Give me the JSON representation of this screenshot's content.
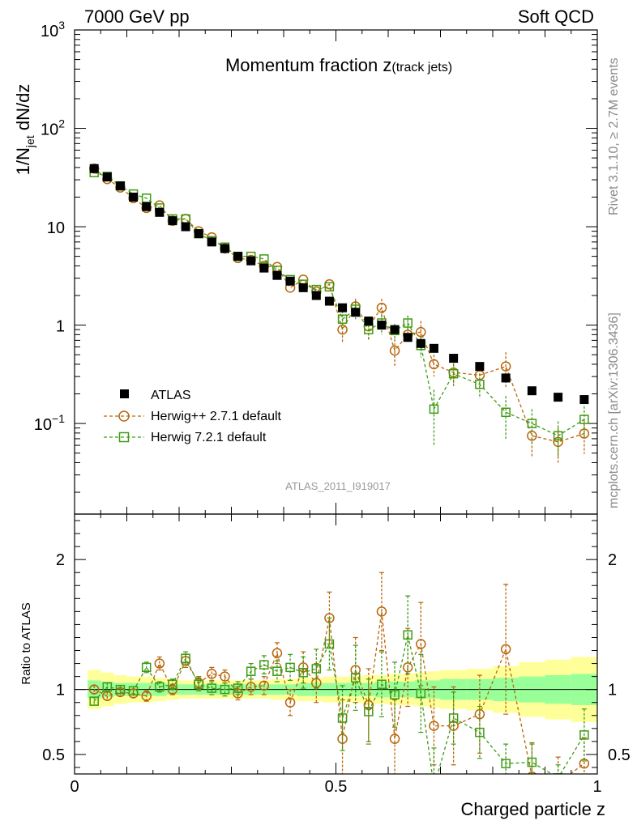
{
  "header": {
    "left": "7000 GeV pp",
    "right": "Soft QCD"
  },
  "side_labels": {
    "rivet": "Rivet 3.1.10, ≥ 2.7M events",
    "mcplots": "mcplots.cern.ch [arXiv:1306.3436]"
  },
  "analysis_id": "ATLAS_2011_I919017",
  "colors": {
    "atlas": "#000000",
    "herwigpp": "#b8660b",
    "herwig7": "#3f9a14",
    "band_inner": "#99ff99",
    "band_outer": "#ffff99"
  },
  "chart_data": [
    {
      "type": "scatter",
      "panel": "main",
      "title_main": "Momentum fraction ",
      "title_z": "z",
      "title_sub": "(track jets)",
      "ylabel_main": "1/N",
      "ylabel_sub": "jet",
      "ylabel_tail": " dN/dz",
      "yscale": "log",
      "ylim": [
        0.012,
        1000
      ],
      "xlim": [
        0,
        1
      ],
      "yticks": [
        {
          "value": 0.1,
          "base": "10",
          "exp": "−1"
        },
        {
          "value": 1,
          "base": "1",
          "exp": ""
        },
        {
          "value": 10,
          "base": "10",
          "exp": ""
        },
        {
          "value": 100,
          "base": "10",
          "exp": "2"
        },
        {
          "value": 1000,
          "base": "10",
          "exp": "3"
        }
      ],
      "legend": {
        "position": "lower-left",
        "entries": [
          "ATLAS",
          "Herwig++ 2.7.1 default",
          "Herwig 7.2.1 default"
        ]
      },
      "x": [
        0.0375,
        0.0625,
        0.0875,
        0.1125,
        0.1375,
        0.1625,
        0.1875,
        0.2125,
        0.2375,
        0.2625,
        0.2875,
        0.3125,
        0.3375,
        0.3625,
        0.3875,
        0.4125,
        0.4375,
        0.4625,
        0.4875,
        0.5125,
        0.5375,
        0.5625,
        0.5875,
        0.6125,
        0.6375,
        0.6625,
        0.6875,
        0.725,
        0.775,
        0.825,
        0.875,
        0.925,
        0.975
      ],
      "series": [
        {
          "name": "ATLAS",
          "values": [
            39,
            32,
            26,
            20,
            16,
            14,
            11.5,
            10,
            8.5,
            7,
            6,
            5,
            4.5,
            3.8,
            3.2,
            2.8,
            2.4,
            2.0,
            1.75,
            1.5,
            1.35,
            1.1,
            1.0,
            0.9,
            0.75,
            0.65,
            0.58,
            0.46,
            0.38,
            0.29,
            0.215,
            0.185,
            0.175
          ]
        },
        {
          "name": "Herwig++ 2.7.1 default",
          "values": [
            39,
            30.5,
            25,
            19.5,
            15.5,
            16.5,
            11.5,
            12,
            9,
            7.8,
            6,
            4.8,
            4.6,
            4.0,
            3.9,
            2.4,
            2.9,
            2.2,
            2.6,
            0.9,
            1.55,
            0.97,
            1.5,
            0.55,
            0.8,
            0.85,
            0.4,
            0.33,
            0.31,
            0.38,
            0.075,
            0.065,
            0.079
          ],
          "errors": [
            0,
            0,
            0,
            0,
            0,
            0,
            0,
            0,
            0,
            0,
            0,
            0,
            0,
            0,
            0,
            0,
            0,
            0,
            0,
            0.25,
            0.3,
            0.25,
            0.35,
            0.17,
            0.15,
            0.25,
            0.1,
            0.08,
            0.08,
            0.15,
            0.03,
            0.025,
            0.03
          ]
        },
        {
          "name": "Herwig 7.2.1 default",
          "values": [
            35.5,
            32.5,
            26,
            21.5,
            19.5,
            15.5,
            12,
            12,
            8.5,
            7.2,
            6.2,
            5,
            5,
            4.7,
            3.6,
            2.9,
            2.6,
            2.3,
            2.45,
            1.15,
            1.45,
            0.9,
            1.05,
            0.88,
            1.05,
            0.62,
            0.14,
            0.32,
            0.25,
            0.13,
            0.1,
            0.075,
            0.11
          ],
          "errors": [
            0,
            0,
            0,
            0,
            0,
            0,
            0,
            0,
            0,
            0,
            0,
            0,
            0,
            0,
            0,
            0,
            0,
            0,
            0,
            0.25,
            0.3,
            0.2,
            0.25,
            0.15,
            0.2,
            0.15,
            0.08,
            0.08,
            0.07,
            0.06,
            0.04,
            0.03,
            0.04
          ]
        }
      ]
    },
    {
      "type": "scatter",
      "panel": "ratio",
      "ylabel": "Ratio to ATLAS",
      "xlabel": "Charged particle z",
      "ylim": [
        0.35,
        2.35
      ],
      "xlim": [
        0,
        1
      ],
      "yticks": [
        0.5,
        1,
        2
      ],
      "xticks": [
        0,
        0.5,
        1
      ],
      "band_edges": [
        0.025,
        0.05,
        0.075,
        0.1,
        0.125,
        0.15,
        0.175,
        0.2,
        0.225,
        0.25,
        0.275,
        0.3,
        0.325,
        0.35,
        0.375,
        0.4,
        0.425,
        0.45,
        0.475,
        0.5,
        0.525,
        0.55,
        0.575,
        0.6,
        0.625,
        0.65,
        0.675,
        0.7,
        0.75,
        0.8,
        0.85,
        0.9,
        0.95,
        1.0
      ],
      "band_inner": [
        0.07,
        0.06,
        0.05,
        0.05,
        0.05,
        0.05,
        0.04,
        0.04,
        0.04,
        0.04,
        0.04,
        0.04,
        0.04,
        0.04,
        0.04,
        0.04,
        0.05,
        0.05,
        0.05,
        0.05,
        0.05,
        0.05,
        0.06,
        0.06,
        0.06,
        0.07,
        0.07,
        0.08,
        0.08,
        0.09,
        0.1,
        0.11,
        0.12
      ],
      "band_outer": [
        0.15,
        0.13,
        0.11,
        0.1,
        0.1,
        0.09,
        0.08,
        0.07,
        0.07,
        0.07,
        0.07,
        0.07,
        0.07,
        0.07,
        0.08,
        0.08,
        0.09,
        0.09,
        0.1,
        0.1,
        0.1,
        0.11,
        0.11,
        0.12,
        0.12,
        0.13,
        0.14,
        0.15,
        0.16,
        0.18,
        0.21,
        0.23,
        0.25
      ],
      "x": [
        0.0375,
        0.0625,
        0.0875,
        0.1125,
        0.1375,
        0.1625,
        0.1875,
        0.2125,
        0.2375,
        0.2625,
        0.2875,
        0.3125,
        0.3375,
        0.3625,
        0.3875,
        0.4125,
        0.4375,
        0.4625,
        0.4875,
        0.5125,
        0.5375,
        0.5625,
        0.5875,
        0.6125,
        0.6375,
        0.6625,
        0.6875,
        0.725,
        0.775,
        0.825,
        0.875,
        0.925,
        0.975
      ],
      "series": [
        {
          "name": "Herwig++ 2.7.1 default",
          "values": [
            1.0,
            0.95,
            0.98,
            0.97,
            0.95,
            1.2,
            1.0,
            1.22,
            1.05,
            1.12,
            1.1,
            0.97,
            1.02,
            1.03,
            1.28,
            0.9,
            1.17,
            1.05,
            1.55,
            0.62,
            1.15,
            0.88,
            1.6,
            0.62,
            1.17,
            1.35,
            0.72,
            0.72,
            0.81,
            1.31,
            0.33,
            0.28,
            0.43
          ],
          "errors": [
            0.03,
            0.03,
            0.03,
            0.03,
            0.04,
            0.05,
            0.04,
            0.05,
            0.05,
            0.05,
            0.05,
            0.05,
            0.06,
            0.07,
            0.08,
            0.1,
            0.12,
            0.15,
            0.2,
            0.3,
            0.25,
            0.28,
            0.3,
            0.3,
            0.3,
            0.32,
            0.3,
            0.3,
            0.3,
            0.5,
            0.25,
            0.2,
            0.2
          ]
        },
        {
          "name": "Herwig 7.2.1 default",
          "values": [
            0.91,
            1.02,
            1.0,
            0.99,
            1.17,
            1.02,
            1.04,
            1.24,
            1.04,
            1.01,
            1.0,
            1.01,
            1.14,
            1.19,
            1.14,
            1.17,
            1.13,
            1.16,
            1.35,
            0.78,
            1.09,
            0.83,
            1.04,
            0.96,
            1.42,
            0.97,
            0.25,
            0.78,
            0.67,
            0.43,
            0.44,
            0.32,
            0.65
          ],
          "errors": [
            0.03,
            0.03,
            0.03,
            0.03,
            0.04,
            0.04,
            0.04,
            0.05,
            0.05,
            0.05,
            0.05,
            0.05,
            0.06,
            0.07,
            0.08,
            0.1,
            0.12,
            0.15,
            0.2,
            0.25,
            0.25,
            0.25,
            0.25,
            0.25,
            0.3,
            0.3,
            0.3,
            0.2,
            0.2,
            0.15,
            0.15,
            0.1,
            0.2
          ]
        }
      ]
    }
  ]
}
